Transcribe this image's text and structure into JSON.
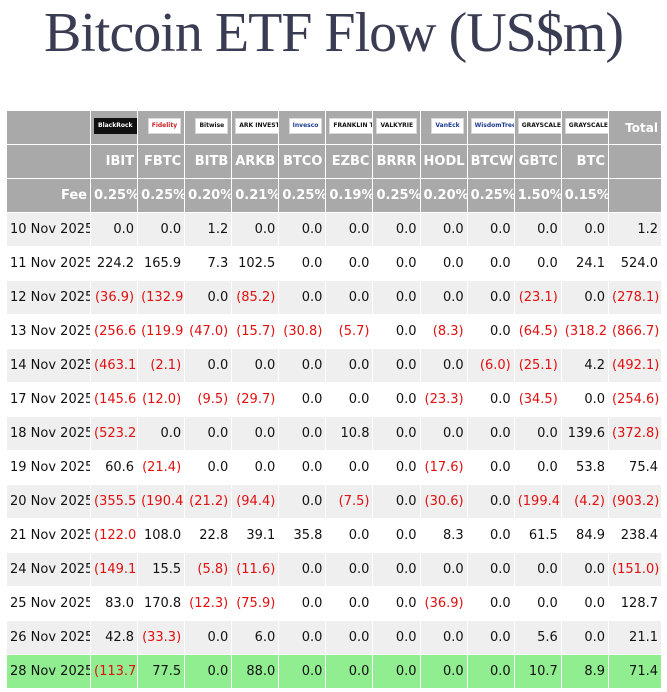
{
  "title": "Bitcoin ETF Flow (US$m)",
  "header": {
    "logos": [
      {
        "issuer": "BlackRock",
        "style": "dark"
      },
      {
        "issuer": "Fidelity",
        "style": "red"
      },
      {
        "issuer": "Bitwise",
        "style": "plain"
      },
      {
        "issuer": "ARK INVEST",
        "style": "plain"
      },
      {
        "issuer": "Invesco",
        "style": "blue"
      },
      {
        "issuer": "FRANKLIN TEMPLETON",
        "style": "plain"
      },
      {
        "issuer": "VALKYRIE",
        "style": "plain"
      },
      {
        "issuer": "VanEck",
        "style": "blue"
      },
      {
        "issuer": "WisdomTree",
        "style": "blue"
      },
      {
        "issuer": "GRAYSCALE",
        "style": "plain"
      },
      {
        "issuer": "GRAYSCALE",
        "style": "plain"
      }
    ],
    "total_label": "Total",
    "tickers": [
      "IBIT",
      "FBTC",
      "BITB",
      "ARKB",
      "BTCO",
      "EZBC",
      "BRRR",
      "HODL",
      "BTCW",
      "GBTC",
      "BTC"
    ],
    "fee_label": "Fee",
    "fees": [
      "0.25%",
      "0.25%",
      "0.20%",
      "0.21%",
      "0.25%",
      "0.19%",
      "0.25%",
      "0.20%",
      "0.25%",
      "1.50%",
      "0.15%"
    ]
  },
  "rows": [
    {
      "date": "10 Nov 2025",
      "values": [
        "0.0",
        "0.0",
        "1.2",
        "0.0",
        "0.0",
        "0.0",
        "0.0",
        "0.0",
        "0.0",
        "0.0",
        "0.0",
        "1.2"
      ]
    },
    {
      "date": "11 Nov 2025",
      "values": [
        "224.2",
        "165.9",
        "7.3",
        "102.5",
        "0.0",
        "0.0",
        "0.0",
        "0.0",
        "0.0",
        "0.0",
        "24.1",
        "524.0"
      ]
    },
    {
      "date": "12 Nov 2025",
      "values": [
        "(36.9)",
        "(132.9)",
        "0.0",
        "(85.2)",
        "0.0",
        "0.0",
        "0.0",
        "0.0",
        "0.0",
        "(23.1)",
        "0.0",
        "(278.1)"
      ]
    },
    {
      "date": "13 Nov 2025",
      "values": [
        "(256.6)",
        "(119.9)",
        "(47.0)",
        "(15.7)",
        "(30.8)",
        "(5.7)",
        "0.0",
        "(8.3)",
        "0.0",
        "(64.5)",
        "(318.2)",
        "(866.7)"
      ]
    },
    {
      "date": "14 Nov 2025",
      "values": [
        "(463.1)",
        "(2.1)",
        "0.0",
        "0.0",
        "0.0",
        "0.0",
        "0.0",
        "0.0",
        "(6.0)",
        "(25.1)",
        "4.2",
        "(492.1)"
      ]
    },
    {
      "date": "17 Nov 2025",
      "values": [
        "(145.6)",
        "(12.0)",
        "(9.5)",
        "(29.7)",
        "0.0",
        "0.0",
        "0.0",
        "(23.3)",
        "0.0",
        "(34.5)",
        "0.0",
        "(254.6)"
      ]
    },
    {
      "date": "18 Nov 2025",
      "values": [
        "(523.2)",
        "0.0",
        "0.0",
        "0.0",
        "0.0",
        "10.8",
        "0.0",
        "0.0",
        "0.0",
        "0.0",
        "139.6",
        "(372.8)"
      ]
    },
    {
      "date": "19 Nov 2025",
      "values": [
        "60.6",
        "(21.4)",
        "0.0",
        "0.0",
        "0.0",
        "0.0",
        "0.0",
        "(17.6)",
        "0.0",
        "0.0",
        "53.8",
        "75.4"
      ]
    },
    {
      "date": "20 Nov 2025",
      "values": [
        "(355.5)",
        "(190.4)",
        "(21.2)",
        "(94.4)",
        "0.0",
        "(7.5)",
        "0.0",
        "(30.6)",
        "0.0",
        "(199.4)",
        "(4.2)",
        "(903.2)"
      ]
    },
    {
      "date": "21 Nov 2025",
      "values": [
        "(122.0)",
        "108.0",
        "22.8",
        "39.1",
        "35.8",
        "0.0",
        "0.0",
        "8.3",
        "0.0",
        "61.5",
        "84.9",
        "238.4"
      ]
    },
    {
      "date": "24 Nov 2025",
      "values": [
        "(149.1)",
        "15.5",
        "(5.8)",
        "(11.6)",
        "0.0",
        "0.0",
        "0.0",
        "0.0",
        "0.0",
        "0.0",
        "0.0",
        "(151.0)"
      ]
    },
    {
      "date": "25 Nov 2025",
      "values": [
        "83.0",
        "170.8",
        "(12.3)",
        "(75.9)",
        "0.0",
        "0.0",
        "0.0",
        "(36.9)",
        "0.0",
        "0.0",
        "0.0",
        "128.7"
      ]
    },
    {
      "date": "26 Nov 2025",
      "values": [
        "42.8",
        "(33.3)",
        "0.0",
        "6.0",
        "0.0",
        "0.0",
        "0.0",
        "0.0",
        "0.0",
        "5.6",
        "0.0",
        "21.1"
      ]
    },
    {
      "date": "28 Nov 2025",
      "values": [
        "(113.7)",
        "77.5",
        "0.0",
        "88.0",
        "0.0",
        "0.0",
        "0.0",
        "0.0",
        "0.0",
        "10.7",
        "8.9",
        "71.4"
      ]
    }
  ],
  "colors": {
    "header_bg": "#a9a9a9",
    "negative": "#e01010",
    "highlight_row": "#90ee90",
    "stripe": "#efefef",
    "title": "#3a3c53"
  }
}
